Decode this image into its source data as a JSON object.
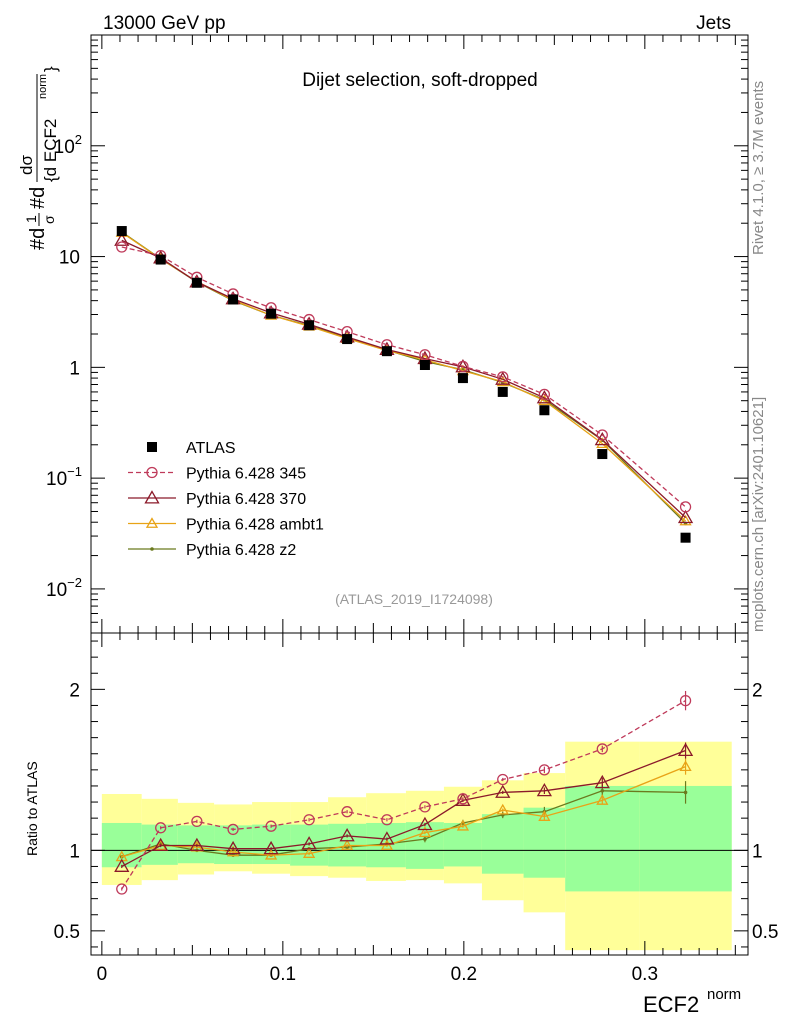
{
  "header": {
    "energy_label": "13000 GeV pp",
    "process_label": "Jets",
    "selection_label": "Dijet selection, soft-dropped",
    "analysis_id": "(ATLAS_2019_I1724098)",
    "rivet_label": "Rivet 4.1.0, ≥ 3.7M events",
    "mcplots_label": "mcplots.cern.ch [arXiv:2401.10621]"
  },
  "axes": {
    "ylabel_main_a": "#d",
    "ylabel_main_b": "1",
    "ylabel_main_c": "σ",
    "ylabel_main_d": "#d",
    "ylabel_main_e": "dσ",
    "ylabel_main_f": "{d ECF2",
    "ylabel_main_g": "norm",
    "ylabel_main_h": "}",
    "ylabel_ratio": "Ratio to ATLAS",
    "xlabel_main": "ECF2",
    "xlabel_sup": "norm",
    "main_y_ticks": [
      {
        "v": 0.01,
        "base": "10",
        "exp": "−2"
      },
      {
        "v": 0.1,
        "base": "10",
        "exp": "−1"
      },
      {
        "v": 1,
        "base": "1",
        "exp": ""
      },
      {
        "v": 10,
        "base": "10",
        "exp": ""
      },
      {
        "v": 100,
        "base": "10",
        "exp": "2"
      }
    ],
    "ratio_y_ticks": [
      {
        "v": 0.5,
        "label": "0.5"
      },
      {
        "v": 1,
        "label": "1"
      },
      {
        "v": 2,
        "label": "2"
      }
    ],
    "x_ticks": [
      {
        "v": 0,
        "label": "0"
      },
      {
        "v": 0.1,
        "label": "0.1"
      },
      {
        "v": 0.2,
        "label": "0.2"
      },
      {
        "v": 0.3,
        "label": "0.3"
      }
    ]
  },
  "chart_data": [
    {
      "type": "scatter",
      "panel": "main",
      "title": "Dijet selection, soft-dropped",
      "xlabel": "ECF2^norm",
      "ylabel": "1/σ dσ/d ECF2^norm",
      "yscale": "log",
      "xlim": [
        -0.006,
        0.357
      ],
      "ylim": [
        0.004,
        1000
      ],
      "legend_position": "lower-left",
      "x": [
        0.011,
        0.0325,
        0.0525,
        0.0725,
        0.0935,
        0.1145,
        0.1355,
        0.1575,
        0.1785,
        0.1995,
        0.2215,
        0.2445,
        0.2765,
        0.3225
      ],
      "bin_edges": [
        0,
        0.022,
        0.042,
        0.062,
        0.083,
        0.104,
        0.125,
        0.146,
        0.168,
        0.189,
        0.21,
        0.233,
        0.256,
        0.297,
        0.348
      ],
      "series": [
        {
          "name": "ATLAS",
          "color": "#000000",
          "marker": "square",
          "line": "none",
          "values": [
            17.0,
            9.4,
            5.8,
            4.1,
            3.05,
            2.4,
            1.8,
            1.4,
            1.05,
            0.8,
            0.6,
            0.41,
            0.165,
            0.029
          ]
        },
        {
          "name": "Pythia 6.428 345",
          "color": "#bf3a5a",
          "marker": "circle",
          "line": "dashed",
          "values": [
            12.2,
            10.2,
            6.5,
            4.6,
            3.45,
            2.7,
            2.1,
            1.6,
            1.3,
            1.02,
            0.82,
            0.57,
            0.245,
            0.055
          ]
        },
        {
          "name": "Pythia 6.428 370",
          "color": "#8b1a2a",
          "marker": "triangle",
          "line": "solid",
          "values": [
            14.0,
            9.7,
            5.9,
            4.15,
            3.1,
            2.45,
            1.88,
            1.45,
            1.2,
            1.01,
            0.78,
            0.53,
            0.222,
            0.044
          ]
        },
        {
          "name": "Pythia 6.428 ambt1",
          "color": "#e8a317",
          "marker": "triangle",
          "line": "solid",
          "values": [
            16.5,
            9.5,
            5.95,
            4.05,
            2.95,
            2.35,
            1.82,
            1.42,
            1.17,
            0.93,
            0.74,
            0.5,
            0.205,
            0.041
          ]
        },
        {
          "name": "Pythia 6.428 z2",
          "color": "#6b7a1e",
          "marker": "dot",
          "line": "solid",
          "values": [
            16.7,
            9.55,
            5.9,
            4.0,
            2.95,
            2.38,
            1.85,
            1.43,
            1.13,
            0.95,
            0.73,
            0.51,
            0.22,
            0.039
          ]
        }
      ]
    },
    {
      "type": "scatter",
      "panel": "ratio",
      "ylabel": "Ratio to ATLAS",
      "xlabel": "ECF2^norm",
      "xlim": [
        -0.006,
        0.357
      ],
      "ylim": [
        0.35,
        2.35
      ],
      "reference_line": 1,
      "x": [
        0.011,
        0.0325,
        0.0525,
        0.0725,
        0.0935,
        0.1145,
        0.1355,
        0.1575,
        0.1785,
        0.1995,
        0.2215,
        0.2445,
        0.2765,
        0.3225
      ],
      "bin_edges": [
        0,
        0.022,
        0.042,
        0.062,
        0.083,
        0.104,
        0.125,
        0.146,
        0.168,
        0.189,
        0.21,
        0.233,
        0.256,
        0.297,
        0.348
      ],
      "uncertainty_bands": {
        "inner_color": "#99ff99",
        "outer_color": "#ffff99",
        "inner_low": [
          0.895,
          0.91,
          0.92,
          0.915,
          0.915,
          0.905,
          0.9,
          0.895,
          0.885,
          0.9,
          0.855,
          0.83,
          0.745,
          0.745
        ],
        "inner_high": [
          1.17,
          1.16,
          1.155,
          1.155,
          1.16,
          1.16,
          1.165,
          1.17,
          1.175,
          1.17,
          1.225,
          1.265,
          1.4,
          1.4
        ],
        "outer_low": [
          0.785,
          0.815,
          0.85,
          0.87,
          0.855,
          0.84,
          0.83,
          0.81,
          0.815,
          0.795,
          0.69,
          0.615,
          0.38,
          0.38
        ],
        "outer_high": [
          1.35,
          1.32,
          1.295,
          1.285,
          1.3,
          1.3,
          1.33,
          1.355,
          1.37,
          1.395,
          1.435,
          1.48,
          1.675,
          1.675
        ]
      },
      "series": [
        {
          "name": "Pythia 6.428 345",
          "color": "#bf3a5a",
          "marker": "circle",
          "line": "dashed",
          "values": [
            0.76,
            1.14,
            1.18,
            1.13,
            1.15,
            1.19,
            1.24,
            1.19,
            1.27,
            1.32,
            1.44,
            1.5,
            1.63,
            1.93
          ],
          "errors": [
            0.01,
            0.01,
            0.01,
            0.01,
            0.01,
            0.01,
            0.01,
            0.01,
            0.01,
            0.01,
            0.01,
            0.02,
            0.02,
            0.06
          ]
        },
        {
          "name": "Pythia 6.428 370",
          "color": "#8b1a2a",
          "marker": "triangle",
          "line": "solid",
          "values": [
            0.9,
            1.03,
            1.03,
            1.01,
            1.01,
            1.04,
            1.09,
            1.07,
            1.16,
            1.31,
            1.36,
            1.37,
            1.42,
            1.62
          ],
          "errors": [
            0.01,
            0.01,
            0.01,
            0.01,
            0.01,
            0.01,
            0.01,
            0.01,
            0.01,
            0.01,
            0.01,
            0.02,
            0.03,
            0.05
          ]
        },
        {
          "name": "Pythia 6.428 ambt1",
          "color": "#e8a317",
          "marker": "triangle",
          "line": "solid",
          "values": [
            0.96,
            1.03,
            1.02,
            0.99,
            0.97,
            0.98,
            1.03,
            1.03,
            1.11,
            1.15,
            1.25,
            1.21,
            1.31,
            1.52
          ],
          "errors": [
            0.01,
            0.01,
            0.01,
            0.01,
            0.01,
            0.01,
            0.01,
            0.01,
            0.01,
            0.01,
            0.01,
            0.02,
            0.02,
            0.05
          ]
        },
        {
          "name": "Pythia 6.428 z2",
          "color": "#6b7a1e",
          "marker": "dot",
          "line": "solid",
          "values": [
            0.96,
            1.04,
            1.0,
            0.97,
            0.97,
            1.01,
            1.02,
            1.04,
            1.07,
            1.17,
            1.22,
            1.24,
            1.37,
            1.36
          ],
          "errors": [
            0.01,
            0.01,
            0.01,
            0.01,
            0.01,
            0.01,
            0.01,
            0.01,
            0.02,
            0.02,
            0.02,
            0.03,
            0.04,
            0.07
          ]
        }
      ]
    }
  ]
}
